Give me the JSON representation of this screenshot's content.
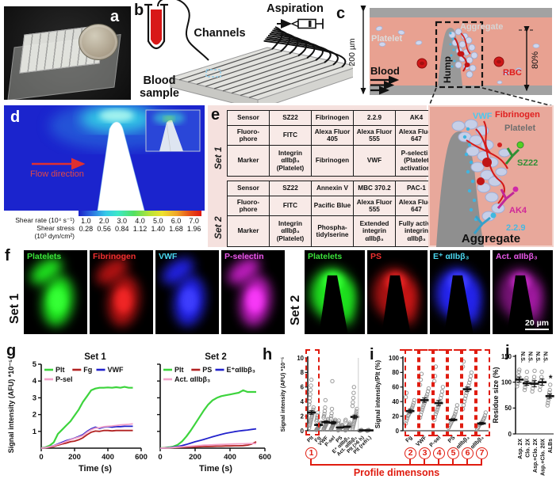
{
  "panels": {
    "a": "a",
    "b": "b",
    "c": "c",
    "d": "d",
    "e": "e",
    "f": "f",
    "g": "g",
    "h": "h",
    "i": "i",
    "j": "j"
  },
  "panel_b": {
    "channels": "Channels",
    "aspiration": "Aspiration",
    "blood_label_1": "Blood",
    "blood_label_2": "sample"
  },
  "panel_c": {
    "height": "200 µm",
    "platelet": "Platelet",
    "aggregate": "Aggregate",
    "blood": "Blood",
    "hump": "Hump",
    "rbc": "RBC",
    "percent": "80%"
  },
  "panel_d": {
    "flow": "Flow direction",
    "rate_label": "Shear rate (10⁴ s⁻¹)",
    "stress_label_1": "Shear stress",
    "stress_label_2": "(10³ dyn/cm²)",
    "rate_ticks": [
      "1.0",
      "2.0",
      "3.0",
      "4.0",
      "5.0",
      "6.0",
      "7.0"
    ],
    "stress_ticks": [
      "0.28",
      "0.56",
      "0.84",
      "1.12",
      "1.40",
      "1.68",
      "1.96"
    ]
  },
  "panel_e": {
    "set1": {
      "name": "Set 1",
      "rows": [
        [
          "Sensor",
          "SZ22",
          "Fibrinogen",
          "2.2.9",
          "AK4"
        ],
        [
          "Fluoro-phore",
          "FITC",
          "Alexa Fluor 405",
          "Alexa Fluor 555",
          "Alexa Fluor 647"
        ],
        [
          "Marker",
          "Integrin αIIbβ₃ (Platelet)",
          "Fibrinogen",
          "VWF",
          "P-selectin (Platelet activation)"
        ]
      ]
    },
    "set2": {
      "name": "Set 2",
      "rows": [
        [
          "Sensor",
          "SZ22",
          "Annexin V",
          "MBC 370.2",
          "PAC-1"
        ],
        [
          "Fluoro-phore",
          "FITC",
          "Pacific Blue",
          "Alexa Fluor 555",
          "Alexa Fluor 647"
        ],
        [
          "Marker",
          "Integrin αIIbβ₃ (Platelet)",
          "Phospha-tidylserine",
          "Extended integrin αIIbβ₃",
          "Fully active integrin αIIbβ₃"
        ]
      ]
    }
  },
  "panel_e_zoom": {
    "vwf": "VWF",
    "fibrinogen": "Fibrinogen",
    "platelet": "Platelet",
    "sz22": "SZ22",
    "ak4": "AK4",
    "clone": "2.2.9",
    "caption": "Aggregate"
  },
  "panel_f": {
    "scale_bar": "20 µm",
    "set1": {
      "label": "Set 1",
      "tiles": [
        {
          "label": "Platelets",
          "label_color": "#3be23b",
          "blob_color": "#1ee21e",
          "glow": 1
        },
        {
          "label": "Fibrinogen",
          "label_color": "#f03030",
          "blob_color": "#e01818",
          "glow": 0.8
        },
        {
          "label": "VWF",
          "label_color": "#4ad8f0",
          "blob_color": "#2424ee",
          "glow": 0.95
        },
        {
          "label": "P-selectin",
          "label_color": "#e858e8",
          "blob_color": "#d822d8",
          "glow": 0.88
        }
      ]
    },
    "set2": {
      "label": "Set 2",
      "tiles": [
        {
          "label": "Platelets",
          "label_color": "#3be23b",
          "blob_color": "#1ee21e",
          "glow": 1
        },
        {
          "label": "PS",
          "label_color": "#f03030",
          "blob_color": "#e01818",
          "glow": 0.75
        },
        {
          "label": "E⁺ αIIbβ₃",
          "label_color": "#4ad8f0",
          "blob_color": "#2424ee",
          "glow": 1
        },
        {
          "label": "Act. αIIbβ₃",
          "label_color": "#e858e8",
          "blob_color": "#d822d8",
          "glow": 0.55,
          "has_scale_bar": true
        }
      ]
    }
  },
  "chart_data": [
    {
      "id": "g_set1",
      "type": "line",
      "title": "Set 1",
      "xlabel": "Time (s)",
      "ylabel": "Signal intensity (AFU) *10⁻⁵",
      "xlim": [
        0,
        600
      ],
      "ylim": [
        0,
        5
      ],
      "xticks": [
        0,
        200,
        400,
        600
      ],
      "yticks": [
        1,
        2,
        3,
        4,
        5
      ],
      "x": [
        0,
        25,
        50,
        75,
        100,
        125,
        150,
        175,
        200,
        225,
        250,
        275,
        300,
        325,
        350,
        375,
        400,
        425,
        450,
        475,
        500,
        525,
        550
      ],
      "series": [
        {
          "name": "Plt",
          "color": "#3dd43d",
          "y": [
            0,
            0.05,
            0.15,
            0.35,
            0.85,
            1.1,
            1.35,
            1.6,
            1.95,
            2.3,
            2.75,
            3.1,
            3.45,
            3.55,
            3.6,
            3.6,
            3.62,
            3.6,
            3.63,
            3.6,
            3.65,
            3.6,
            3.6
          ]
        },
        {
          "name": "Fg",
          "color": "#b22222",
          "y": [
            0,
            0.02,
            0.05,
            0.1,
            0.18,
            0.25,
            0.3,
            0.38,
            0.42,
            0.5,
            0.62,
            0.8,
            0.95,
            1.02,
            1.0,
            1.05,
            1.05,
            1.03,
            1.05,
            1.05,
            1.05,
            1.05,
            1.05
          ]
        },
        {
          "name": "VWF",
          "color": "#2222cc",
          "y": [
            0,
            0.03,
            0.08,
            0.15,
            0.25,
            0.35,
            0.45,
            0.52,
            0.6,
            0.7,
            0.8,
            1.0,
            1.15,
            1.25,
            1.18,
            1.25,
            1.28,
            1.25,
            1.28,
            1.28,
            1.3,
            1.3,
            1.3
          ]
        },
        {
          "name": "P-sel",
          "color": "#f2a0c8",
          "y": [
            0,
            0.03,
            0.08,
            0.14,
            0.22,
            0.3,
            0.4,
            0.5,
            0.58,
            0.66,
            0.75,
            0.95,
            1.1,
            1.2,
            1.22,
            1.28,
            1.3,
            1.32,
            1.35,
            1.38,
            1.4,
            1.42,
            1.45
          ]
        }
      ]
    },
    {
      "id": "g_set2",
      "type": "line",
      "title": "Set 2",
      "xlabel": "Time (s)",
      "ylabel": "",
      "xlim": [
        0,
        600
      ],
      "ylim": [
        0,
        5
      ],
      "xticks": [
        0,
        200,
        400,
        600
      ],
      "yticks": [
        1,
        2,
        3,
        4,
        5
      ],
      "x": [
        0,
        25,
        50,
        75,
        100,
        125,
        150,
        175,
        200,
        225,
        250,
        275,
        300,
        325,
        350,
        375,
        400,
        425,
        450,
        475,
        500,
        525,
        550
      ],
      "series": [
        {
          "name": "Plt",
          "color": "#3dd43d",
          "y": [
            0,
            0.02,
            0.05,
            0.1,
            0.2,
            0.4,
            0.7,
            1.05,
            1.45,
            1.85,
            2.25,
            2.6,
            2.85,
            3.0,
            3.1,
            3.15,
            3.2,
            3.25,
            3.3,
            3.45,
            3.35,
            3.35,
            3.35
          ]
        },
        {
          "name": "PS",
          "color": "#b22222",
          "y": [
            0,
            0.01,
            0.02,
            0.03,
            0.04,
            0.05,
            0.06,
            0.07,
            0.08,
            0.09,
            0.1,
            0.1,
            0.11,
            0.12,
            0.12,
            0.13,
            0.13,
            0.14,
            0.14,
            0.15,
            0.18,
            0.25,
            0.38
          ]
        },
        {
          "name": "E⁺αIIbβ₃",
          "color": "#2222cc",
          "y": [
            0,
            0.01,
            0.03,
            0.06,
            0.1,
            0.15,
            0.22,
            0.3,
            0.38,
            0.45,
            0.52,
            0.6,
            0.68,
            0.75,
            0.82,
            0.88,
            0.93,
            0.98,
            1.02,
            1.05,
            1.08,
            1.12,
            1.15
          ]
        },
        {
          "name": "Act. αIIbβ₃",
          "color": "#f2a0c8",
          "y": [
            0,
            0.01,
            0.02,
            0.04,
            0.06,
            0.08,
            0.1,
            0.12,
            0.14,
            0.16,
            0.18,
            0.19,
            0.2,
            0.21,
            0.22,
            0.23,
            0.24,
            0.25,
            0.26,
            0.26,
            0.27,
            0.28,
            0.28
          ]
        }
      ]
    },
    {
      "id": "h",
      "type": "scatter",
      "ylabel": "Signal intensity (AFU) *10⁻⁵",
      "ylim": [
        0,
        10
      ],
      "yticks": [
        0,
        2,
        4,
        6,
        8,
        10
      ],
      "categories": [
        "Plt",
        "Fg",
        "VWF",
        "P-sel",
        "PS",
        "E⁺ αIIbβ₃",
        "Act. αIIbβ₃",
        "Plt (>6 h)",
        "Plt (refri.)"
      ],
      "means": [
        2.5,
        0.8,
        1.2,
        1.1,
        0.45,
        0.55,
        1.9,
        0.05,
        0.05
      ],
      "sems": [
        0.25,
        0.12,
        0.15,
        0.2,
        0.08,
        0.1,
        0.25,
        0.03,
        0.03
      ],
      "points": [
        [
          0.4,
          0.7,
          0.9,
          1.1,
          1.3,
          1.5,
          1.7,
          1.9,
          2.1,
          2.3,
          2.6,
          2.9,
          3.2,
          3.6,
          4.0,
          4.5,
          5.0,
          5.6,
          6.2,
          7.0
        ],
        [
          0.1,
          0.2,
          0.25,
          0.3,
          0.35,
          0.4,
          0.5,
          0.6,
          0.7,
          0.8,
          0.9,
          1.0,
          1.1,
          1.3,
          1.5,
          1.8,
          2.1,
          2.5
        ],
        [
          0.2,
          0.3,
          0.4,
          0.5,
          0.6,
          0.7,
          0.8,
          0.9,
          1.0,
          1.1,
          1.2,
          1.4,
          1.6,
          1.8,
          2.0,
          2.3,
          2.7,
          3.2,
          4.2
        ],
        [
          0.15,
          0.25,
          0.35,
          0.45,
          0.55,
          0.65,
          0.75,
          0.85,
          0.95,
          1.05,
          1.2,
          1.35,
          1.5,
          1.7,
          2.0,
          2.4,
          3.0,
          6.8
        ],
        [
          0.05,
          0.1,
          0.15,
          0.2,
          0.25,
          0.3,
          0.35,
          0.4,
          0.45,
          0.5,
          0.6,
          0.7,
          0.8,
          0.9,
          1.1,
          1.4
        ],
        [
          0.05,
          0.1,
          0.15,
          0.2,
          0.25,
          0.3,
          0.4,
          0.5,
          0.6,
          0.7,
          0.8,
          0.9,
          1.1,
          1.3,
          1.5
        ],
        [
          0.3,
          0.5,
          0.7,
          0.9,
          1.1,
          1.3,
          1.5,
          1.7,
          1.9,
          2.1,
          2.4,
          2.7,
          3.0,
          3.4,
          3.9,
          4.5,
          5.2,
          6.0
        ],
        [
          0.0,
          0.02,
          0.04,
          0.06,
          0.08,
          0.1
        ],
        [
          0.0,
          0.02,
          0.04,
          0.06,
          0.08,
          0.1
        ]
      ]
    },
    {
      "id": "i",
      "type": "scatter",
      "ylabel": "Signal intensity/Plt (%)",
      "ylim": [
        0,
        100
      ],
      "yticks": [
        0,
        20,
        40,
        60,
        80,
        100
      ],
      "categories": [
        "Fg",
        "VWF",
        "P-sel",
        "PS",
        "E⁺ αIIbβ₃",
        "Act. αIIbβ₃"
      ],
      "means": [
        27,
        42,
        38,
        15,
        57,
        10
      ],
      "sems": [
        2.5,
        3,
        3.5,
        1.5,
        3,
        1.5
      ],
      "points": [
        [
          10,
          14,
          17,
          20,
          22,
          24,
          26,
          28,
          30,
          32,
          35,
          38,
          42,
          46,
          52
        ],
        [
          18,
          22,
          26,
          29,
          32,
          35,
          38,
          41,
          44,
          47,
          50,
          54,
          58,
          63,
          70,
          78
        ],
        [
          15,
          19,
          23,
          26,
          29,
          32,
          35,
          38,
          41,
          45,
          49,
          54,
          60,
          68,
          75,
          88
        ],
        [
          4,
          6,
          8,
          10,
          12,
          14,
          16,
          18,
          20,
          23,
          26,
          30,
          35
        ],
        [
          30,
          35,
          40,
          44,
          48,
          52,
          55,
          58,
          62,
          66,
          70,
          75,
          80,
          88,
          95
        ],
        [
          2,
          4,
          6,
          8,
          9,
          10,
          11,
          12,
          14,
          16,
          18,
          21,
          25
        ]
      ]
    },
    {
      "id": "j",
      "type": "scatter",
      "ylabel": "Residue size (%)",
      "ylim": [
        0,
        150
      ],
      "yticks": [
        0,
        50,
        100,
        150
      ],
      "categories": [
        "Asp. 2X",
        "Clo. 2X",
        "Asp.+Clo. 2X",
        "Asp.+Clo. 20X",
        "ALBs"
      ],
      "means": [
        105,
        98,
        97,
        100,
        73
      ],
      "sems": [
        5,
        4,
        6,
        6,
        4
      ],
      "sig": [
        "N.S.",
        "N.S.",
        "N.S.",
        "N.S.",
        "*"
      ],
      "points": [
        [
          92,
          97,
          102,
          107,
          112,
          120,
          124
        ],
        [
          85,
          90,
          95,
          99,
          103,
          108,
          120
        ],
        [
          82,
          88,
          94,
          98,
          103,
          110,
          122
        ],
        [
          85,
          92,
          98,
          103,
          110,
          120
        ],
        [
          55,
          60,
          65,
          70,
          75,
          80,
          85,
          95
        ]
      ]
    }
  ],
  "annotation": {
    "circled": [
      "1",
      "2",
      "3",
      "4",
      "5",
      "6",
      "7"
    ],
    "caption": "Profile dimensons"
  }
}
